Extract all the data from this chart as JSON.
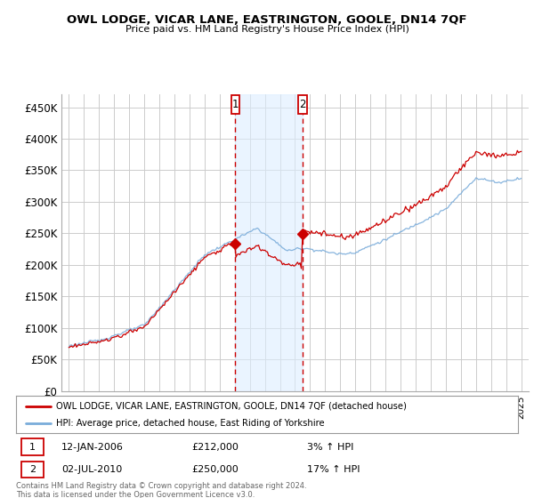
{
  "title": "OWL LODGE, VICAR LANE, EASTRINGTON, GOOLE, DN14 7QF",
  "subtitle": "Price paid vs. HM Land Registry's House Price Index (HPI)",
  "legend_line1": "OWL LODGE, VICAR LANE, EASTRINGTON, GOOLE, DN14 7QF (detached house)",
  "legend_line2": "HPI: Average price, detached house, East Riding of Yorkshire",
  "footnote": "Contains HM Land Registry data © Crown copyright and database right 2024.\nThis data is licensed under the Open Government Licence v3.0.",
  "sale1_date": "12-JAN-2006",
  "sale1_price": "£212,000",
  "sale1_hpi": "3% ↑ HPI",
  "sale2_date": "02-JUL-2010",
  "sale2_price": "£250,000",
  "sale2_hpi": "17% ↑ HPI",
  "ylim": [
    0,
    470000
  ],
  "yticks": [
    0,
    50000,
    100000,
    150000,
    200000,
    250000,
    300000,
    350000,
    400000,
    450000
  ],
  "background_color": "#ffffff",
  "plot_bg_color": "#ffffff",
  "grid_color": "#cccccc",
  "red_line_color": "#cc0000",
  "blue_line_color": "#7aacda",
  "shade_color": "#ddeeff",
  "marker1_x": 2006.04,
  "marker2_x": 2010.5,
  "xmin": 1994.5,
  "xmax": 2025.5
}
